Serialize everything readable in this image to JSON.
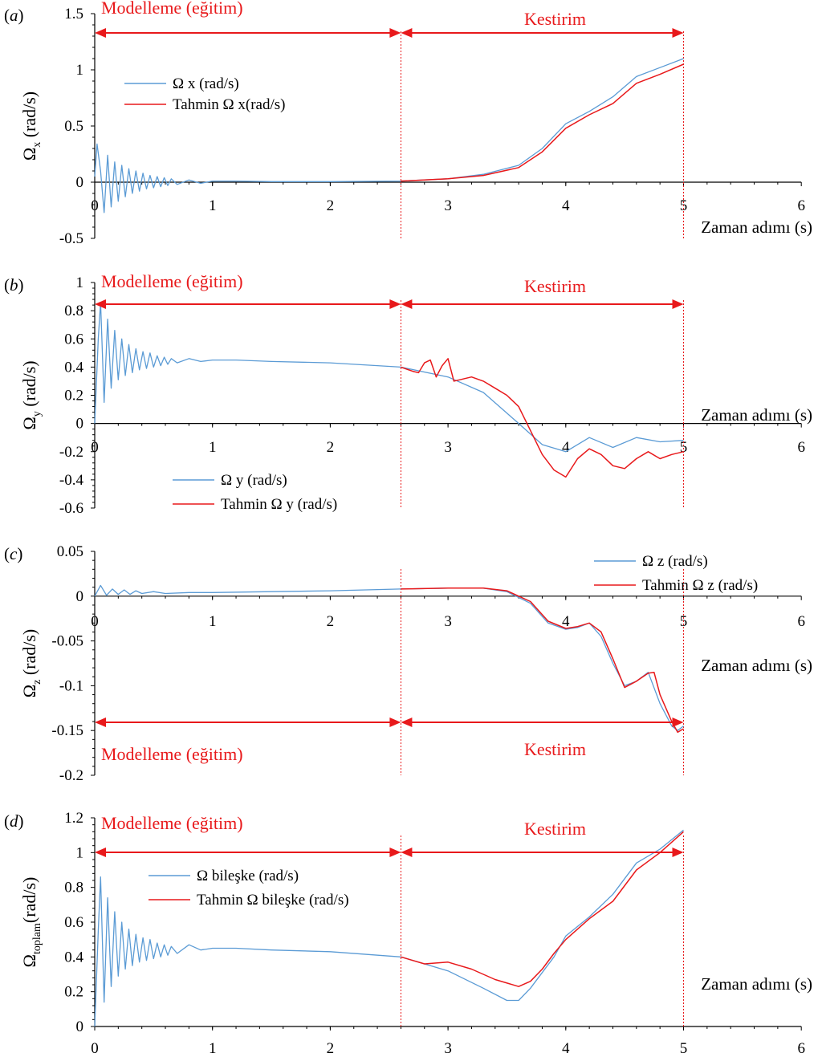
{
  "colors": {
    "actual": "#5b9bd5",
    "predicted": "#e8191b",
    "annotation": "#e8191b",
    "axis": "#000000"
  },
  "chart_data": [
    {
      "type": "line",
      "panel_label": "a",
      "xlabel": "Zaman adımı (s)",
      "ylabel_main": "Ω",
      "ylabel_sub": "x",
      "ylabel_unit": " (rad/s)",
      "xlim": [
        0,
        6
      ],
      "ylim": [
        -0.5,
        1.5
      ],
      "xticks": [
        0,
        1,
        2,
        3,
        4,
        5,
        6
      ],
      "yticks": [
        -0.5,
        0,
        0.5,
        1,
        1.5
      ],
      "ytick_labels": [
        "-0.5",
        "0",
        "0.5",
        "1",
        "1.5"
      ],
      "grid": false,
      "legend_position": "upper-left",
      "split_x": 2.6,
      "end_x": 5.0,
      "training_label": "Modelleme (eğitim)",
      "prediction_label": "Kestirim",
      "annotation_position": "top",
      "series": [
        {
          "name": "Ω x (rad/s)",
          "role": "actual",
          "x": [
            0,
            0.02,
            0.05,
            0.08,
            0.11,
            0.14,
            0.17,
            0.2,
            0.23,
            0.26,
            0.29,
            0.32,
            0.35,
            0.38,
            0.41,
            0.44,
            0.47,
            0.5,
            0.53,
            0.56,
            0.59,
            0.62,
            0.65,
            0.7,
            0.8,
            0.9,
            1.0,
            1.2,
            1.5,
            2.0,
            2.6,
            3.0,
            3.3,
            3.6,
            3.8,
            4.0,
            4.2,
            4.4,
            4.6,
            4.8,
            5.0
          ],
          "y": [
            0.05,
            0.34,
            0.1,
            -0.27,
            0.24,
            -0.22,
            0.18,
            -0.17,
            0.15,
            -0.13,
            0.12,
            -0.1,
            0.1,
            -0.08,
            0.08,
            -0.06,
            0.06,
            -0.05,
            0.05,
            -0.04,
            0.04,
            -0.03,
            0.03,
            -0.02,
            0.02,
            -0.01,
            0.01,
            0.01,
            0.005,
            0.005,
            0.01,
            0.03,
            0.07,
            0.15,
            0.3,
            0.52,
            0.63,
            0.76,
            0.94,
            1.02,
            1.1
          ]
        },
        {
          "name": "Tahmin  Ω x(rad/s)",
          "role": "predicted",
          "x": [
            2.6,
            3.0,
            3.3,
            3.6,
            3.8,
            4.0,
            4.2,
            4.4,
            4.6,
            4.8,
            5.0
          ],
          "y": [
            0.01,
            0.03,
            0.06,
            0.13,
            0.27,
            0.48,
            0.6,
            0.7,
            0.88,
            0.96,
            1.05
          ]
        }
      ]
    },
    {
      "type": "line",
      "panel_label": "b",
      "xlabel": "Zaman adımı (s)",
      "ylabel_main": "Ω",
      "ylabel_sub": "y",
      "ylabel_unit": " (rad/s)",
      "xlim": [
        0,
        6
      ],
      "ylim": [
        -0.6,
        1
      ],
      "xticks": [
        0,
        1,
        2,
        3,
        4,
        5,
        6
      ],
      "yticks": [
        -0.6,
        -0.4,
        -0.2,
        0,
        0.2,
        0.4,
        0.6,
        0.8,
        1
      ],
      "ytick_labels": [
        "-0.6",
        "-0.4",
        "-0.2",
        "0",
        "0.2",
        "0.4",
        "0.6",
        "0.8",
        "1"
      ],
      "grid": false,
      "legend_position": "lower-left",
      "split_x": 2.6,
      "end_x": 5.0,
      "training_label": "Modelleme (eğitim)",
      "prediction_label": "Kestirim",
      "annotation_position": "top",
      "series": [
        {
          "name": "Ω y (rad/s)",
          "role": "actual",
          "x": [
            0,
            0.03,
            0.05,
            0.08,
            0.11,
            0.14,
            0.17,
            0.2,
            0.23,
            0.26,
            0.29,
            0.32,
            0.35,
            0.38,
            0.41,
            0.44,
            0.47,
            0.5,
            0.53,
            0.56,
            0.59,
            0.62,
            0.65,
            0.7,
            0.8,
            0.9,
            1.0,
            1.2,
            1.5,
            2.0,
            2.6,
            3.0,
            3.3,
            3.6,
            3.8,
            4.0,
            4.2,
            4.4,
            4.6,
            4.8,
            5.0
          ],
          "y": [
            0.0,
            0.6,
            0.86,
            0.15,
            0.74,
            0.25,
            0.66,
            0.31,
            0.6,
            0.34,
            0.56,
            0.36,
            0.53,
            0.38,
            0.51,
            0.39,
            0.5,
            0.4,
            0.48,
            0.41,
            0.47,
            0.42,
            0.46,
            0.43,
            0.46,
            0.44,
            0.45,
            0.45,
            0.44,
            0.43,
            0.4,
            0.33,
            0.22,
            0.0,
            -0.15,
            -0.2,
            -0.1,
            -0.17,
            -0.1,
            -0.13,
            -0.12
          ]
        },
        {
          "name": "Tahmin  Ω y (rad/s)",
          "role": "predicted",
          "x": [
            2.6,
            2.7,
            2.75,
            2.8,
            2.85,
            2.9,
            2.95,
            3.0,
            3.05,
            3.1,
            3.2,
            3.3,
            3.4,
            3.5,
            3.6,
            3.7,
            3.8,
            3.9,
            4.0,
            4.1,
            4.2,
            4.3,
            4.4,
            4.5,
            4.6,
            4.7,
            4.8,
            4.9,
            5.0
          ],
          "y": [
            0.4,
            0.37,
            0.36,
            0.43,
            0.45,
            0.33,
            0.41,
            0.46,
            0.3,
            0.31,
            0.33,
            0.3,
            0.25,
            0.2,
            0.12,
            -0.05,
            -0.22,
            -0.33,
            -0.38,
            -0.25,
            -0.18,
            -0.22,
            -0.3,
            -0.32,
            -0.25,
            -0.2,
            -0.25,
            -0.22,
            -0.2
          ]
        }
      ]
    },
    {
      "type": "line",
      "panel_label": "c",
      "xlabel": "Zaman adımı (s)",
      "ylabel_main": "Ω",
      "ylabel_sub": "z",
      "ylabel_unit": " (rad/s)",
      "xlim": [
        0,
        6
      ],
      "ylim": [
        -0.2,
        0.05
      ],
      "xticks": [
        0,
        1,
        2,
        3,
        4,
        5,
        6
      ],
      "yticks": [
        -0.2,
        -0.15,
        -0.1,
        -0.05,
        0,
        0.05
      ],
      "ytick_labels": [
        "-0.2",
        "-0.15",
        "-0.1",
        "-0.05",
        "0",
        "0.05"
      ],
      "grid": false,
      "legend_position": "top-right",
      "split_x": 2.6,
      "end_x": 5.0,
      "training_label": "Modelleme (eğitim)",
      "prediction_label": "Kestirim",
      "annotation_position": "bottom",
      "series": [
        {
          "name": "Ω z (rad/s)",
          "role": "actual",
          "x": [
            0,
            0.05,
            0.1,
            0.15,
            0.2,
            0.25,
            0.3,
            0.35,
            0.4,
            0.5,
            0.6,
            0.8,
            1.0,
            1.5,
            2.0,
            2.6,
            3.0,
            3.3,
            3.5,
            3.7,
            3.85,
            4.0,
            4.1,
            4.2,
            4.3,
            4.4,
            4.5,
            4.6,
            4.7,
            4.8,
            4.9,
            4.95,
            5.0
          ],
          "y": [
            0,
            0.012,
            0.001,
            0.008,
            0.002,
            0.007,
            0.002,
            0.006,
            0.003,
            0.005,
            0.003,
            0.004,
            0.004,
            0.005,
            0.006,
            0.008,
            0.009,
            0.009,
            0.005,
            -0.008,
            -0.03,
            -0.037,
            -0.035,
            -0.03,
            -0.045,
            -0.075,
            -0.1,
            -0.095,
            -0.085,
            -0.12,
            -0.145,
            -0.15,
            -0.145
          ]
        },
        {
          "name": "Tahmin  Ω z (rad/s)",
          "role": "predicted",
          "x": [
            2.6,
            3.0,
            3.3,
            3.5,
            3.7,
            3.85,
            4.0,
            4.1,
            4.2,
            4.3,
            4.4,
            4.5,
            4.6,
            4.7,
            4.75,
            4.8,
            4.9,
            4.95,
            5.0
          ],
          "y": [
            0.008,
            0.009,
            0.009,
            0.006,
            -0.006,
            -0.028,
            -0.036,
            -0.034,
            -0.03,
            -0.04,
            -0.07,
            -0.102,
            -0.095,
            -0.086,
            -0.085,
            -0.11,
            -0.14,
            -0.152,
            -0.148
          ]
        }
      ]
    },
    {
      "type": "line",
      "panel_label": "d",
      "xlabel": "Zaman adımı (s)",
      "ylabel_main": "Ω",
      "ylabel_sub": "toplam",
      "ylabel_unit": "(rad/s)",
      "xlim": [
        0,
        6
      ],
      "ylim": [
        0,
        1.2
      ],
      "xticks": [
        0,
        1,
        2,
        3,
        4,
        5,
        6
      ],
      "yticks": [
        0,
        0.2,
        0.4,
        0.6,
        0.8,
        1,
        1.2
      ],
      "ytick_labels": [
        "0",
        "0.2",
        "0.4",
        "0.6",
        "0.8",
        "1",
        "1.2"
      ],
      "grid": false,
      "legend_position": "upper-left",
      "split_x": 2.6,
      "end_x": 5.0,
      "training_label": "Modelleme (eğitim)",
      "prediction_label": "Kestirim",
      "annotation_position": "top",
      "series": [
        {
          "name": "Ω bileşke (rad/s)",
          "role": "actual",
          "x": [
            0,
            0.03,
            0.05,
            0.08,
            0.11,
            0.14,
            0.17,
            0.2,
            0.23,
            0.26,
            0.29,
            0.32,
            0.35,
            0.38,
            0.41,
            0.44,
            0.47,
            0.5,
            0.53,
            0.56,
            0.59,
            0.62,
            0.65,
            0.7,
            0.8,
            0.9,
            1.0,
            1.2,
            1.5,
            2.0,
            2.6,
            3.0,
            3.3,
            3.5,
            3.6,
            3.7,
            3.9,
            4.0,
            4.2,
            4.4,
            4.6,
            4.8,
            5.0
          ],
          "y": [
            0.0,
            0.55,
            0.86,
            0.14,
            0.74,
            0.23,
            0.66,
            0.29,
            0.6,
            0.33,
            0.56,
            0.35,
            0.53,
            0.37,
            0.51,
            0.38,
            0.5,
            0.39,
            0.48,
            0.4,
            0.47,
            0.41,
            0.46,
            0.42,
            0.47,
            0.44,
            0.45,
            0.45,
            0.44,
            0.43,
            0.4,
            0.32,
            0.22,
            0.15,
            0.15,
            0.22,
            0.4,
            0.52,
            0.63,
            0.76,
            0.94,
            1.02,
            1.13
          ]
        },
        {
          "name": "Tahmin  Ω bileşke (rad/s)",
          "role": "predicted",
          "x": [
            2.6,
            2.8,
            3.0,
            3.2,
            3.4,
            3.6,
            3.7,
            3.8,
            3.9,
            4.0,
            4.2,
            4.4,
            4.6,
            4.8,
            5.0
          ],
          "y": [
            0.4,
            0.36,
            0.37,
            0.33,
            0.27,
            0.23,
            0.26,
            0.33,
            0.42,
            0.5,
            0.62,
            0.72,
            0.9,
            1.0,
            1.12
          ]
        }
      ]
    }
  ]
}
